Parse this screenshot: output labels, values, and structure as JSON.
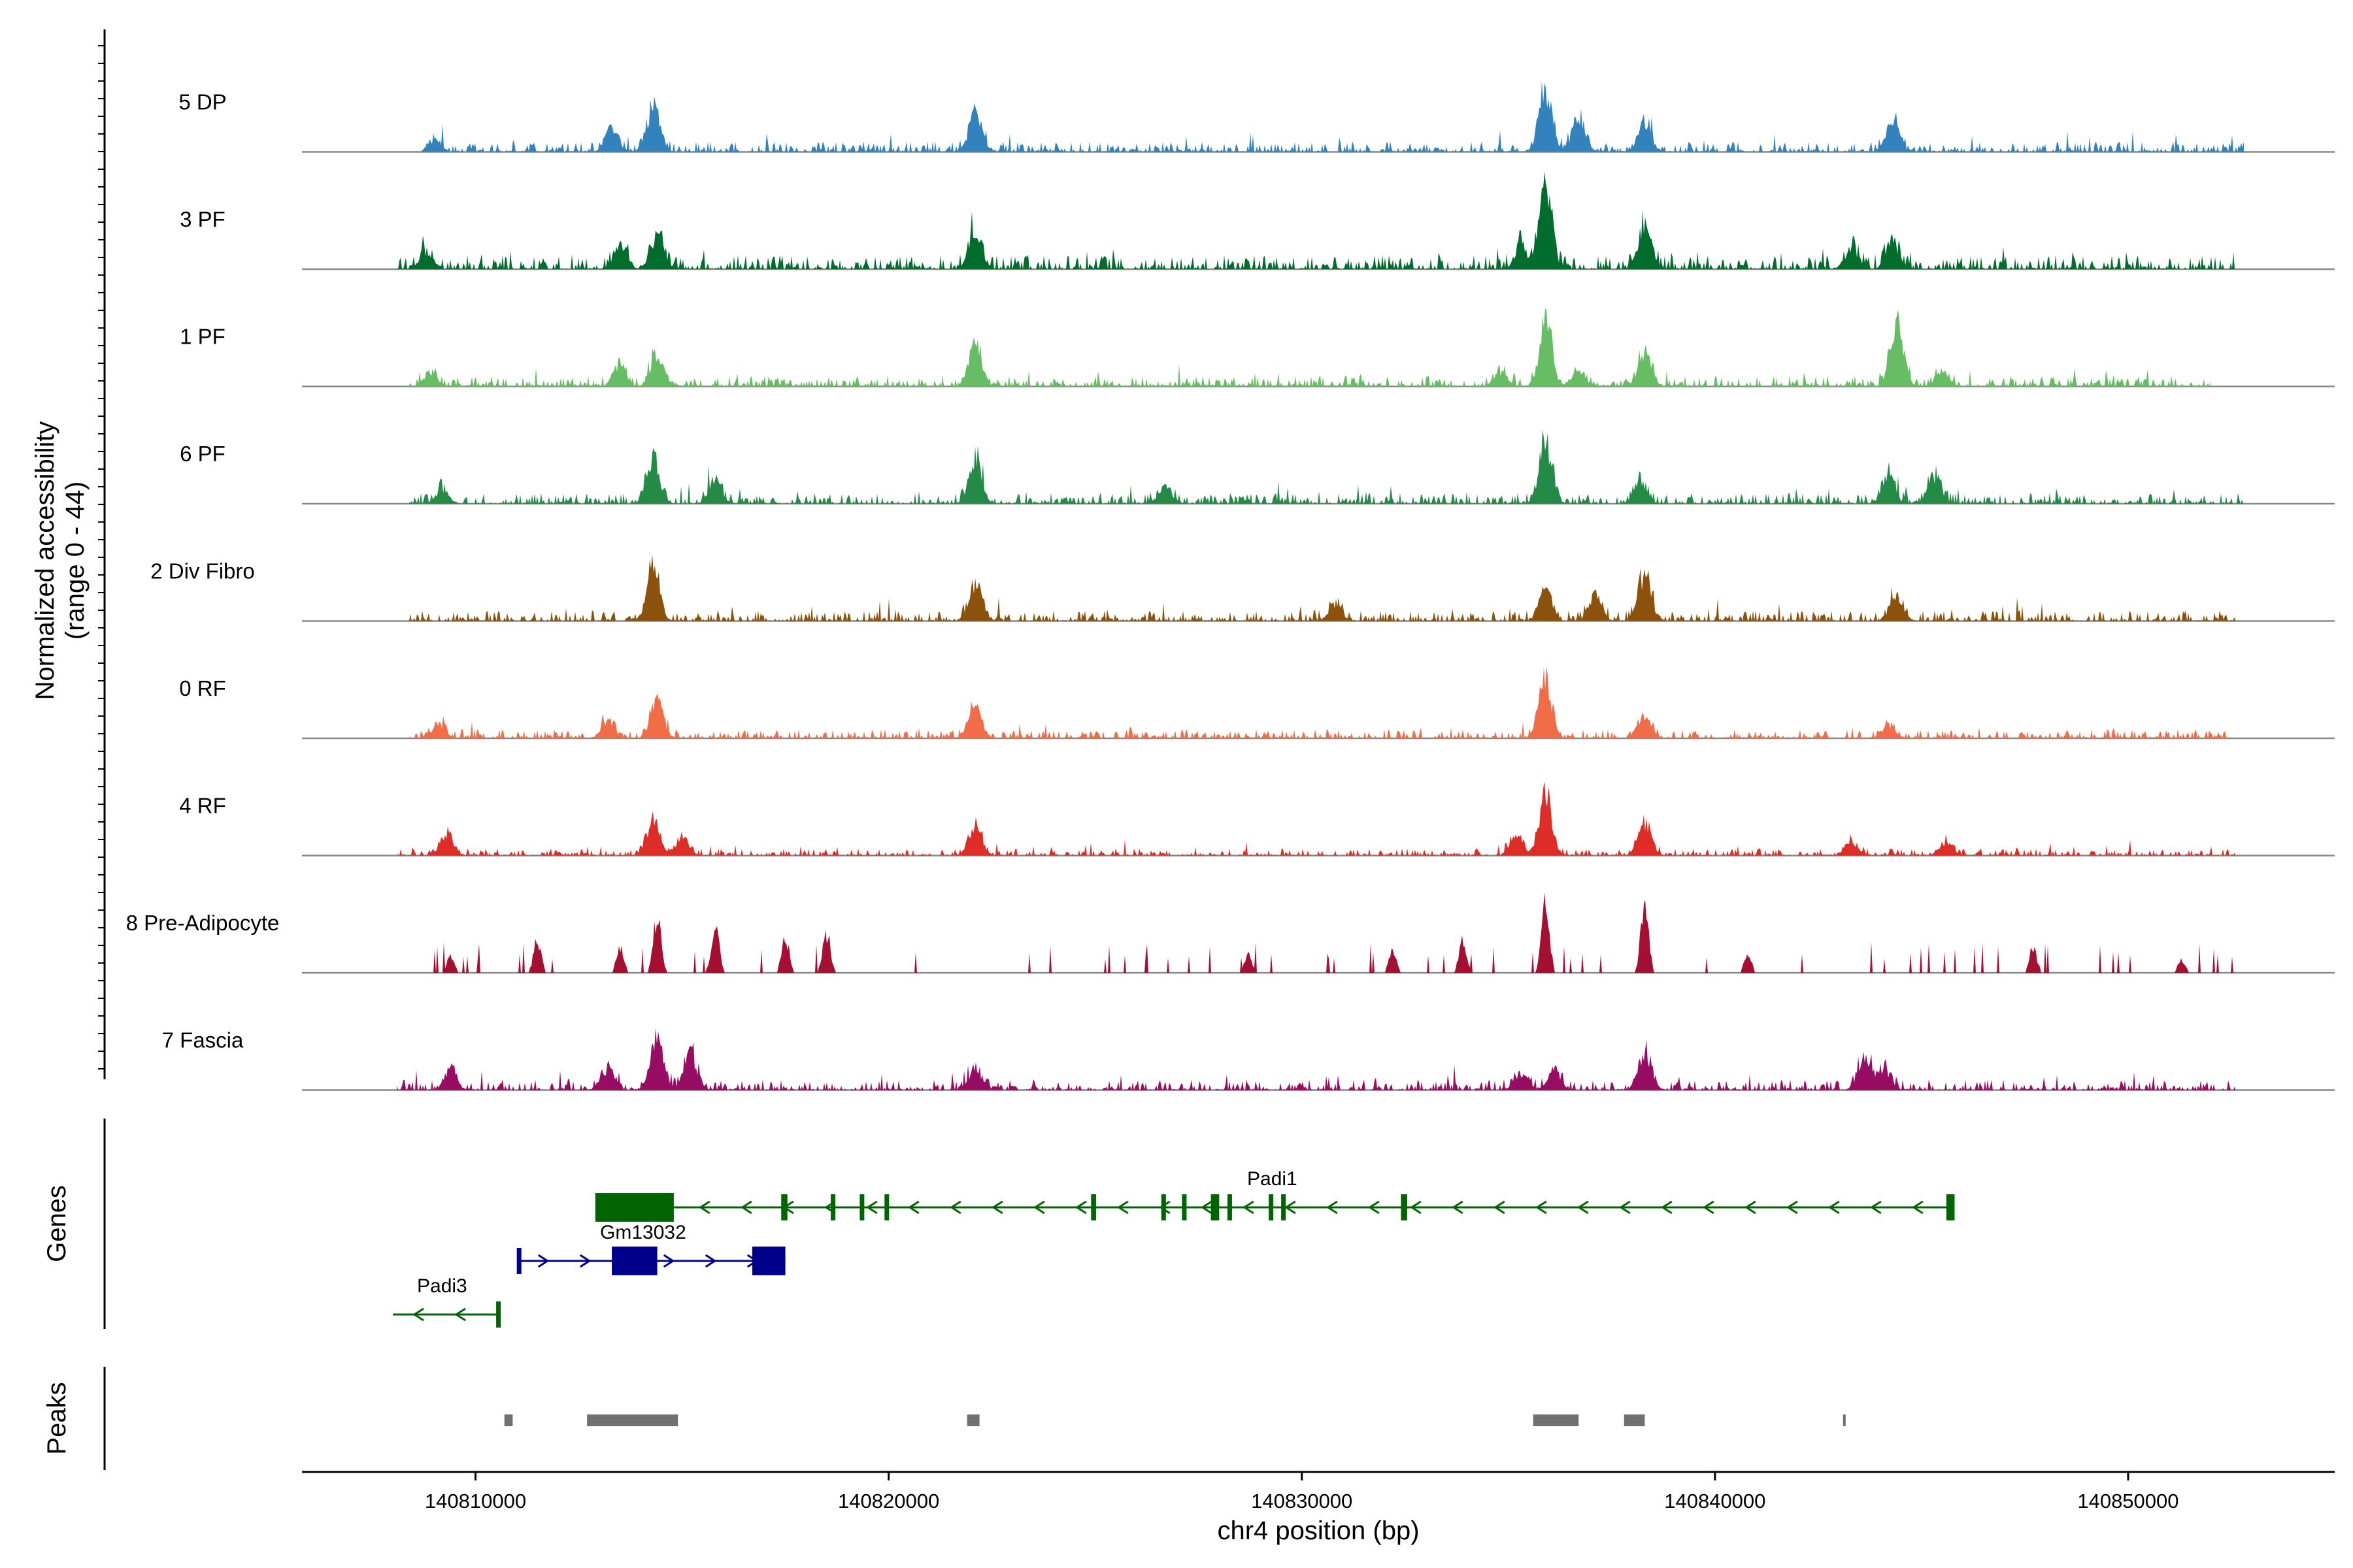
{
  "chart_data": {
    "type": "area",
    "title": "",
    "chromosome": "chr4",
    "xlabel": "chr4 position (bp)",
    "ylabel_line1": "Normalized accessibility",
    "ylabel_line2": "(range 0 - 44)",
    "ylim": [
      0,
      44
    ],
    "xlim": [
      140805800,
      140855000
    ],
    "x_ticks": [
      140810000,
      140820000,
      140830000,
      140840000,
      140850000
    ],
    "x_tick_labels": [
      "140810000",
      "140820000",
      "140830000",
      "140840000",
      "140850000"
    ],
    "series": [
      {
        "name": "5 DP",
        "color": "#3182bd",
        "range": [
          140808700,
          140852800
        ],
        "base": 3,
        "noise": 3,
        "peaks": [
          [
            140809000,
            6
          ],
          [
            140813300,
            13
          ],
          [
            140814300,
            26
          ],
          [
            140822100,
            22
          ],
          [
            140835900,
            36
          ],
          [
            140836700,
            20
          ],
          [
            140838300,
            17
          ],
          [
            140844300,
            18
          ]
        ]
      },
      {
        "name": "3 PF",
        "color": "#006d2c",
        "range": [
          140808100,
          140852600
        ],
        "base": 4,
        "noise": 3,
        "peaks": [
          [
            140808800,
            10
          ],
          [
            140813500,
            14
          ],
          [
            140814400,
            20
          ],
          [
            140822100,
            23
          ],
          [
            140835300,
            13
          ],
          [
            140835900,
            44
          ],
          [
            140838300,
            24
          ],
          [
            140843300,
            12
          ],
          [
            140844300,
            16
          ]
        ]
      },
      {
        "name": "1 PF",
        "color": "#66bd63",
        "range": [
          140808400,
          140852000
        ],
        "base": 3,
        "noise": 2.5,
        "peaks": [
          [
            140808900,
            8
          ],
          [
            140813500,
            10
          ],
          [
            140814400,
            19
          ],
          [
            140822100,
            24
          ],
          [
            140834800,
            8
          ],
          [
            140835900,
            36
          ],
          [
            140836700,
            10
          ],
          [
            140838300,
            21
          ],
          [
            140844400,
            36
          ],
          [
            140845500,
            9
          ]
        ]
      },
      {
        "name": "6 PF",
        "color": "#238b45",
        "range": [
          140808400,
          140852800
        ],
        "base": 3,
        "noise": 3,
        "peaks": [
          [
            140809200,
            8
          ],
          [
            140814300,
            25
          ],
          [
            140815800,
            13
          ],
          [
            140822100,
            24
          ],
          [
            140826700,
            10
          ],
          [
            140835900,
            36
          ],
          [
            140838200,
            12
          ],
          [
            140844200,
            16
          ],
          [
            140845300,
            14
          ]
        ]
      },
      {
        "name": "2 Div Fibro",
        "color": "#8c510a",
        "range": [
          140808400,
          140852600
        ],
        "base": 3,
        "noise": 3,
        "peaks": [
          [
            140814300,
            30
          ],
          [
            140822100,
            22
          ],
          [
            140830800,
            9
          ],
          [
            140835900,
            17
          ],
          [
            140837100,
            15
          ],
          [
            140838300,
            27
          ],
          [
            140844400,
            14
          ]
        ]
      },
      {
        "name": "0 RF",
        "color": "#f16d48",
        "range": [
          140808400,
          140852400
        ],
        "base": 2.5,
        "noise": 2,
        "peaks": [
          [
            140809100,
            8
          ],
          [
            140813200,
            10
          ],
          [
            140814400,
            21
          ],
          [
            140822100,
            16
          ],
          [
            140835900,
            32
          ],
          [
            140838300,
            12
          ],
          [
            140844200,
            7
          ]
        ]
      },
      {
        "name": "4 RF",
        "color": "#de2d26",
        "range": [
          140808100,
          140852600
        ],
        "base": 2,
        "noise": 2,
        "peaks": [
          [
            140809300,
            12
          ],
          [
            140814300,
            18
          ],
          [
            140815000,
            11
          ],
          [
            140822100,
            17
          ],
          [
            140835200,
            10
          ],
          [
            140835900,
            35
          ],
          [
            140838300,
            19
          ],
          [
            140843300,
            8
          ],
          [
            140845600,
            8
          ]
        ]
      },
      {
        "name": "8 Pre-Adipocyte",
        "color": "#a50f31",
        "range": [
          140808600,
          140852600
        ],
        "base": 0,
        "noise": 0,
        "spiky": true,
        "peaks": [
          [
            140809400,
            10
          ],
          [
            140811500,
            18
          ],
          [
            140813500,
            15
          ],
          [
            140814400,
            32
          ],
          [
            140815800,
            28
          ],
          [
            140817500,
            20
          ],
          [
            140818500,
            22
          ],
          [
            140828700,
            10
          ],
          [
            140832200,
            12
          ],
          [
            140833900,
            18
          ],
          [
            140835900,
            40
          ],
          [
            140838300,
            40
          ],
          [
            140840800,
            10
          ],
          [
            140847700,
            14
          ],
          [
            140851300,
            7
          ]
        ]
      },
      {
        "name": "7 Fascia",
        "color": "#960d63",
        "range": [
          140808100,
          140852600
        ],
        "base": 3,
        "noise": 3,
        "peaks": [
          [
            140809400,
            10
          ],
          [
            140813200,
            12
          ],
          [
            140814400,
            30
          ],
          [
            140815200,
            20
          ],
          [
            140822100,
            12
          ],
          [
            140835300,
            10
          ],
          [
            140836100,
            12
          ],
          [
            140838300,
            22
          ],
          [
            140843600,
            18
          ],
          [
            140844100,
            12
          ]
        ]
      }
    ],
    "genes_panel_label": "Genes",
    "peaks_panel_label": "Peaks",
    "genes": [
      {
        "name": "Padi1",
        "strand": "-",
        "start": 140812900,
        "end": 140845800,
        "color": "#006400",
        "row": 0,
        "exons": [
          [
            140812900,
            140814800
          ],
          [
            140817400,
            140817550
          ],
          [
            140818600,
            140818700
          ],
          [
            140819300,
            140819380
          ],
          [
            140819900,
            140820000
          ],
          [
            140824900,
            140825020
          ],
          [
            140826600,
            140826700
          ],
          [
            140827100,
            140827180
          ],
          [
            140827800,
            140828000
          ],
          [
            140828200,
            140828300
          ],
          [
            140829200,
            140829300
          ],
          [
            140829500,
            140829600
          ],
          [
            140832400,
            140832550
          ],
          [
            140845600,
            140845800
          ]
        ]
      },
      {
        "name": "Gm13032",
        "strand": "+",
        "start": 140811000,
        "end": 140817500,
        "color": "#00008b",
        "row": 1,
        "exons": [
          [
            140811000,
            140811100
          ],
          [
            140813300,
            140814400
          ],
          [
            140816700,
            140817500
          ]
        ]
      },
      {
        "name": "Padi3",
        "strand": "-",
        "start": 140808000,
        "end": 140810600,
        "color": "#006400",
        "row": 2,
        "exons": [
          [
            140810500,
            140810600
          ]
        ]
      }
    ],
    "peaks": [
      [
        140810700,
        140810900
      ],
      [
        140812700,
        140814900
      ],
      [
        140821900,
        140822200
      ],
      [
        140835600,
        140836700
      ],
      [
        140837800,
        140838300
      ],
      [
        140843100,
        140843150
      ]
    ]
  }
}
